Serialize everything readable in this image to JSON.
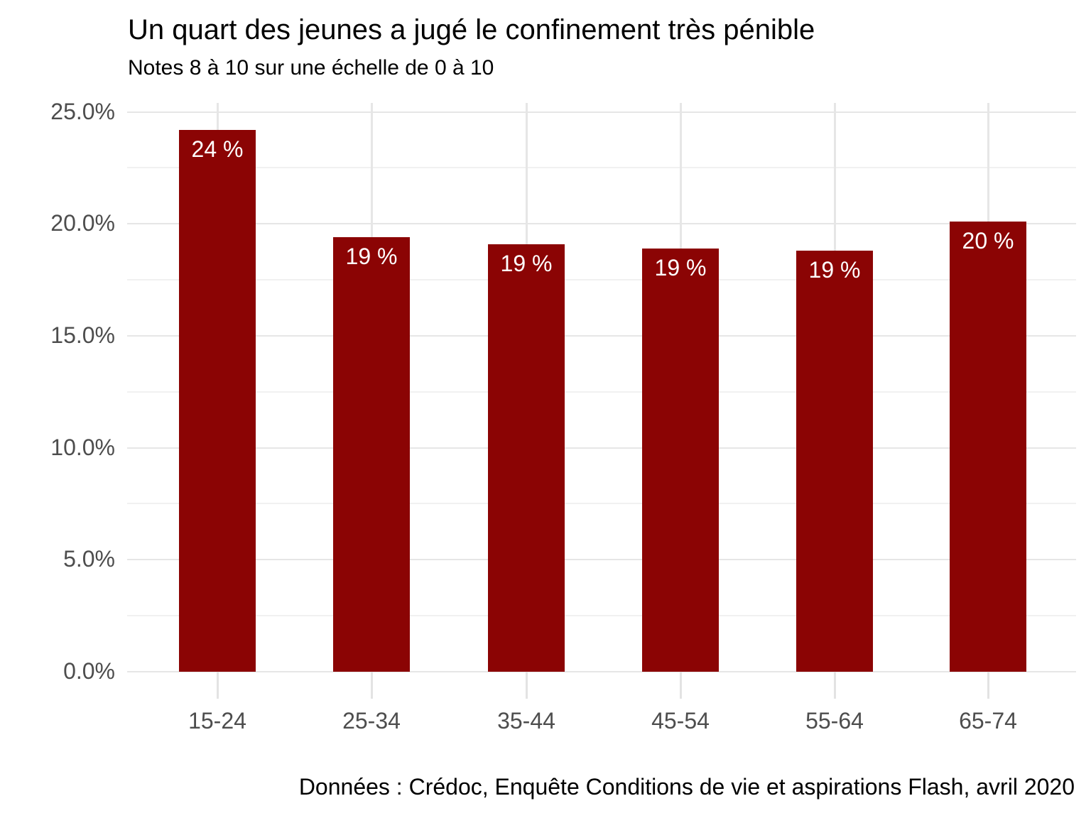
{
  "chart_data": {
    "type": "bar",
    "title": "Un quart des jeunes a jugé le confinement très pénible",
    "subtitle": "Notes 8 à 10 sur une échelle de 0 à 10",
    "caption": "Données : Crédoc, Enquête Conditions de vie et aspirations Flash, avril 2020",
    "categories": [
      "15-24",
      "25-34",
      "35-44",
      "45-54",
      "55-64",
      "65-74"
    ],
    "values": [
      24.2,
      19.4,
      19.1,
      18.9,
      18.8,
      20.1
    ],
    "bar_labels": [
      "24 %",
      "19 %",
      "19 %",
      "19 %",
      "19 %",
      "20 %"
    ],
    "xlabel": "",
    "ylabel": "",
    "ylim": [
      0,
      25.4
    ],
    "yticks": [
      {
        "value": 0,
        "label": "0.0%"
      },
      {
        "value": 5,
        "label": "5.0%"
      },
      {
        "value": 10,
        "label": "10.0%"
      },
      {
        "value": 15,
        "label": "15.0%"
      },
      {
        "value": 20,
        "label": "20.0%"
      },
      {
        "value": 25,
        "label": "25.0%"
      }
    ],
    "y_minor": [
      2.5,
      7.5,
      12.5,
      17.5,
      22.5
    ],
    "grid": true,
    "legend": "none",
    "colors": {
      "bar": "#8B0404",
      "bar_label": "#FFFFFF",
      "grid_major": "#E6E6E6",
      "grid_minor": "#F1F1F1",
      "axis_text": "#4D4D4D",
      "title_text": "#000000",
      "background": "#FFFFFF"
    }
  }
}
